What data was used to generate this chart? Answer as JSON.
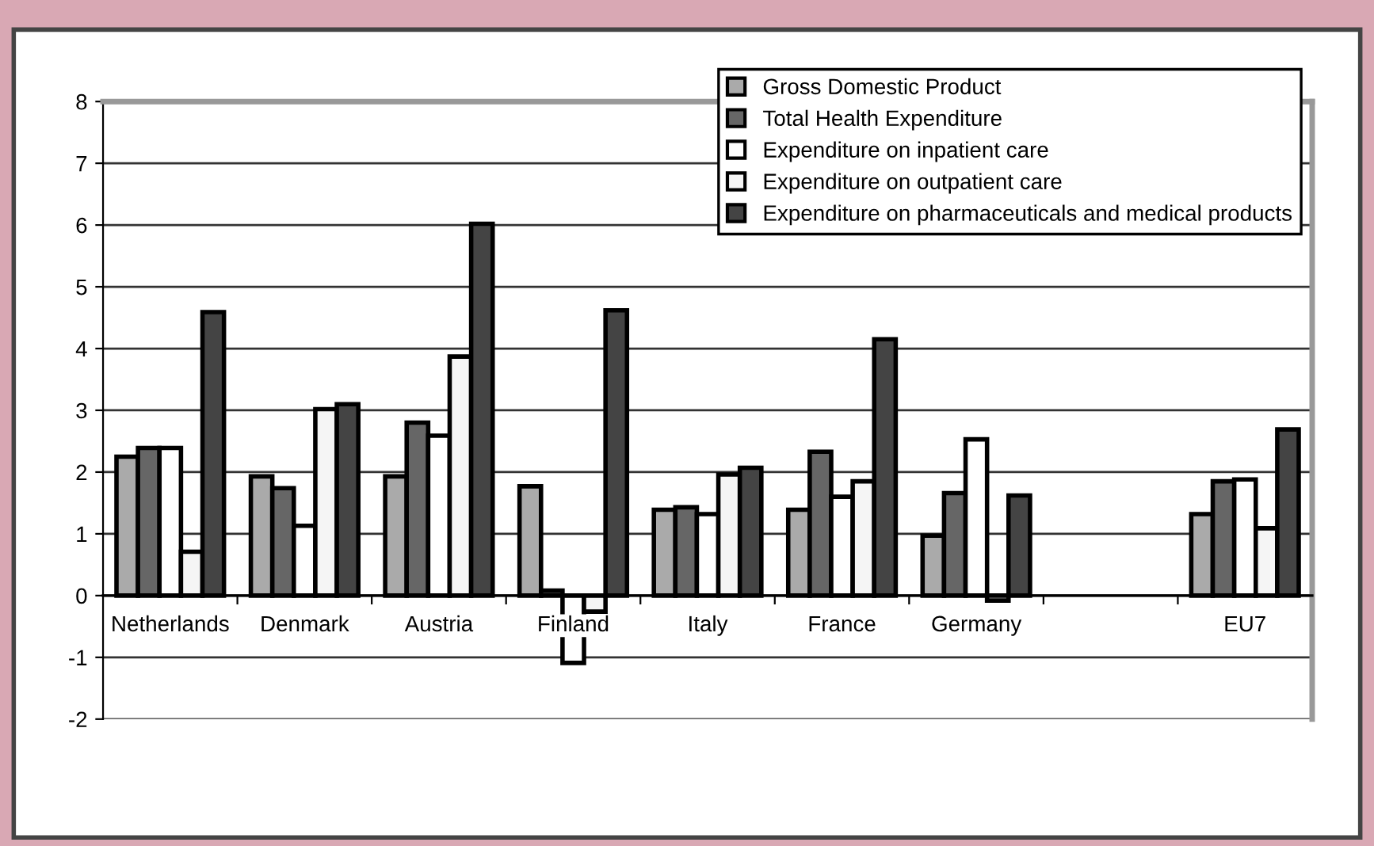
{
  "chart_data": {
    "type": "bar",
    "categories": [
      "Netherlands",
      "Denmark",
      "Austria",
      "Finland",
      "Italy",
      "France",
      "Germany",
      null,
      "EU7"
    ],
    "series": [
      {
        "name": "Gross Domestic Product",
        "color": "#aaaaaa",
        "values": [
          2.25,
          1.93,
          1.93,
          1.77,
          1.39,
          1.39,
          0.97,
          null,
          1.32
        ]
      },
      {
        "name": "Total Health Expenditure",
        "color": "#666666",
        "values": [
          2.39,
          1.74,
          2.8,
          0.08,
          1.43,
          2.33,
          1.66,
          null,
          1.85
        ]
      },
      {
        "name": "Expenditure on inpatient care",
        "color": "#ffffff",
        "values": [
          2.39,
          1.13,
          2.59,
          -1.09,
          1.32,
          1.6,
          2.53,
          null,
          1.88
        ]
      },
      {
        "name": "Expenditure on outpatient care",
        "color": "#f5f5f5",
        "values": [
          0.71,
          3.02,
          3.87,
          -0.26,
          1.96,
          1.85,
          -0.08,
          null,
          1.09
        ]
      },
      {
        "name": "Expenditure on pharmaceuticals and medical products",
        "color": "#444444",
        "values": [
          4.59,
          3.1,
          6.02,
          4.62,
          2.07,
          4.15,
          1.62,
          null,
          2.69
        ]
      }
    ],
    "ylim": [
      -2,
      8
    ],
    "yticks": [
      -2,
      -1,
      0,
      1,
      2,
      3,
      4,
      5,
      6,
      7,
      8
    ],
    "grid": "y",
    "legend": "top right"
  }
}
